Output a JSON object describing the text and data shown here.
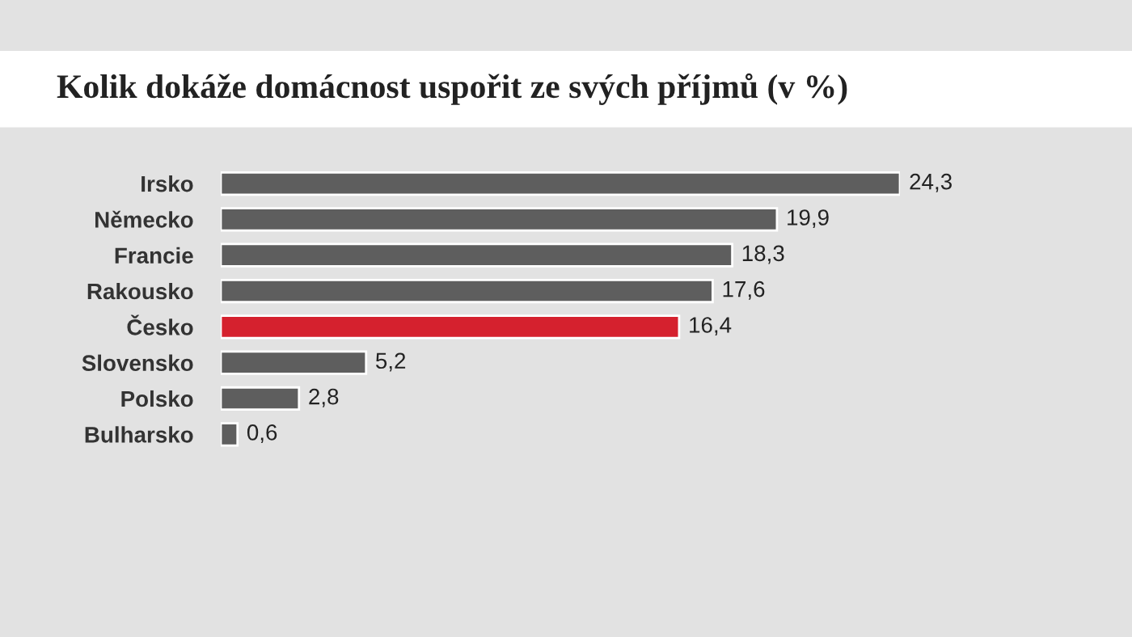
{
  "chart_data": {
    "type": "bar",
    "orientation": "horizontal",
    "title": "Kolik dokáže domácnost uspořit ze svých příjmů (v %)",
    "categories": [
      "Irsko",
      "Německo",
      "Francie",
      "Rakousko",
      "Česko",
      "Slovensko",
      "Polsko",
      "Bulharsko"
    ],
    "values": [
      24.3,
      19.9,
      18.3,
      17.6,
      16.4,
      5.2,
      2.8,
      0.6
    ],
    "colors": [
      "#5e5e5e",
      "#5e5e5e",
      "#5e5e5e",
      "#5e5e5e",
      "#d5212e",
      "#5e5e5e",
      "#5e5e5e",
      "#5e5e5e"
    ],
    "value_labels": [
      "24,3",
      "19,9",
      "18,3",
      "17,6",
      "16,4",
      "5,2",
      "2,8",
      "0,6"
    ],
    "tick_labels": "y",
    "grid": false,
    "legend": false
  }
}
